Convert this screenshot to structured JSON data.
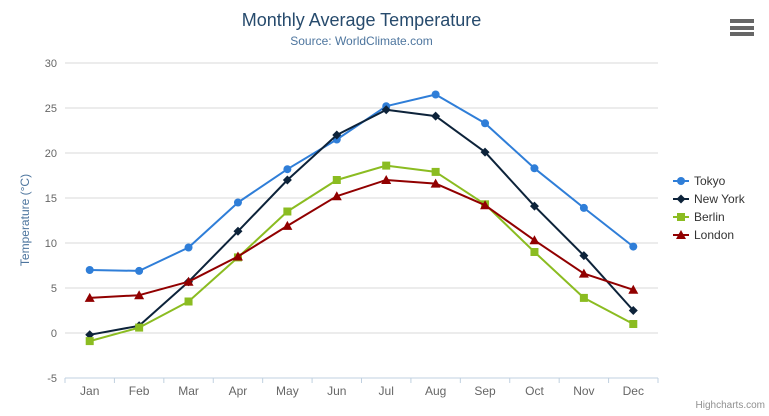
{
  "chart": {
    "credits": "Highcharts.com"
  },
  "colors": {
    "title": "#274b6d",
    "subtitle": "#4d759e",
    "axis_title": "#4d759e",
    "axis_labels": "#666666",
    "legend_text": "#333333",
    "gridline": "#d8d8d8",
    "axis_line": "#c0d0e0",
    "credits_text": "#909090",
    "menu_icon": "#666666"
  },
  "icons": {
    "context_menu": "hamburger-icon"
  },
  "chart_data": {
    "type": "line",
    "title": "Monthly Average Temperature",
    "subtitle": "Source: WorldClimate.com",
    "xlabel": "",
    "ylabel": "Temperature (°C)",
    "categories": [
      "Jan",
      "Feb",
      "Mar",
      "Apr",
      "May",
      "Jun",
      "Jul",
      "Aug",
      "Sep",
      "Oct",
      "Nov",
      "Dec"
    ],
    "ylim": [
      -5,
      30
    ],
    "yticks": [
      -5,
      0,
      5,
      10,
      15,
      20,
      25,
      30
    ],
    "grid": true,
    "legend_position": "right",
    "series": [
      {
        "name": "Tokyo",
        "color": "#2f7ed8",
        "marker": "circle",
        "values": [
          7.0,
          6.9,
          9.5,
          14.5,
          18.2,
          21.5,
          25.2,
          26.5,
          23.3,
          18.3,
          13.9,
          9.6
        ]
      },
      {
        "name": "New York",
        "color": "#0d233a",
        "marker": "diamond",
        "values": [
          -0.2,
          0.8,
          5.7,
          11.3,
          17.0,
          22.0,
          24.8,
          24.1,
          20.1,
          14.1,
          8.6,
          2.5
        ]
      },
      {
        "name": "Berlin",
        "color": "#8bbc21",
        "marker": "square",
        "values": [
          -0.9,
          0.6,
          3.5,
          8.4,
          13.5,
          17.0,
          18.6,
          17.9,
          14.3,
          9.0,
          3.9,
          1.0
        ]
      },
      {
        "name": "London",
        "color": "#910000",
        "marker": "triangle",
        "values": [
          3.9,
          4.2,
          5.7,
          8.5,
          11.9,
          15.2,
          17.0,
          16.6,
          14.2,
          10.3,
          6.6,
          4.8
        ]
      }
    ]
  }
}
